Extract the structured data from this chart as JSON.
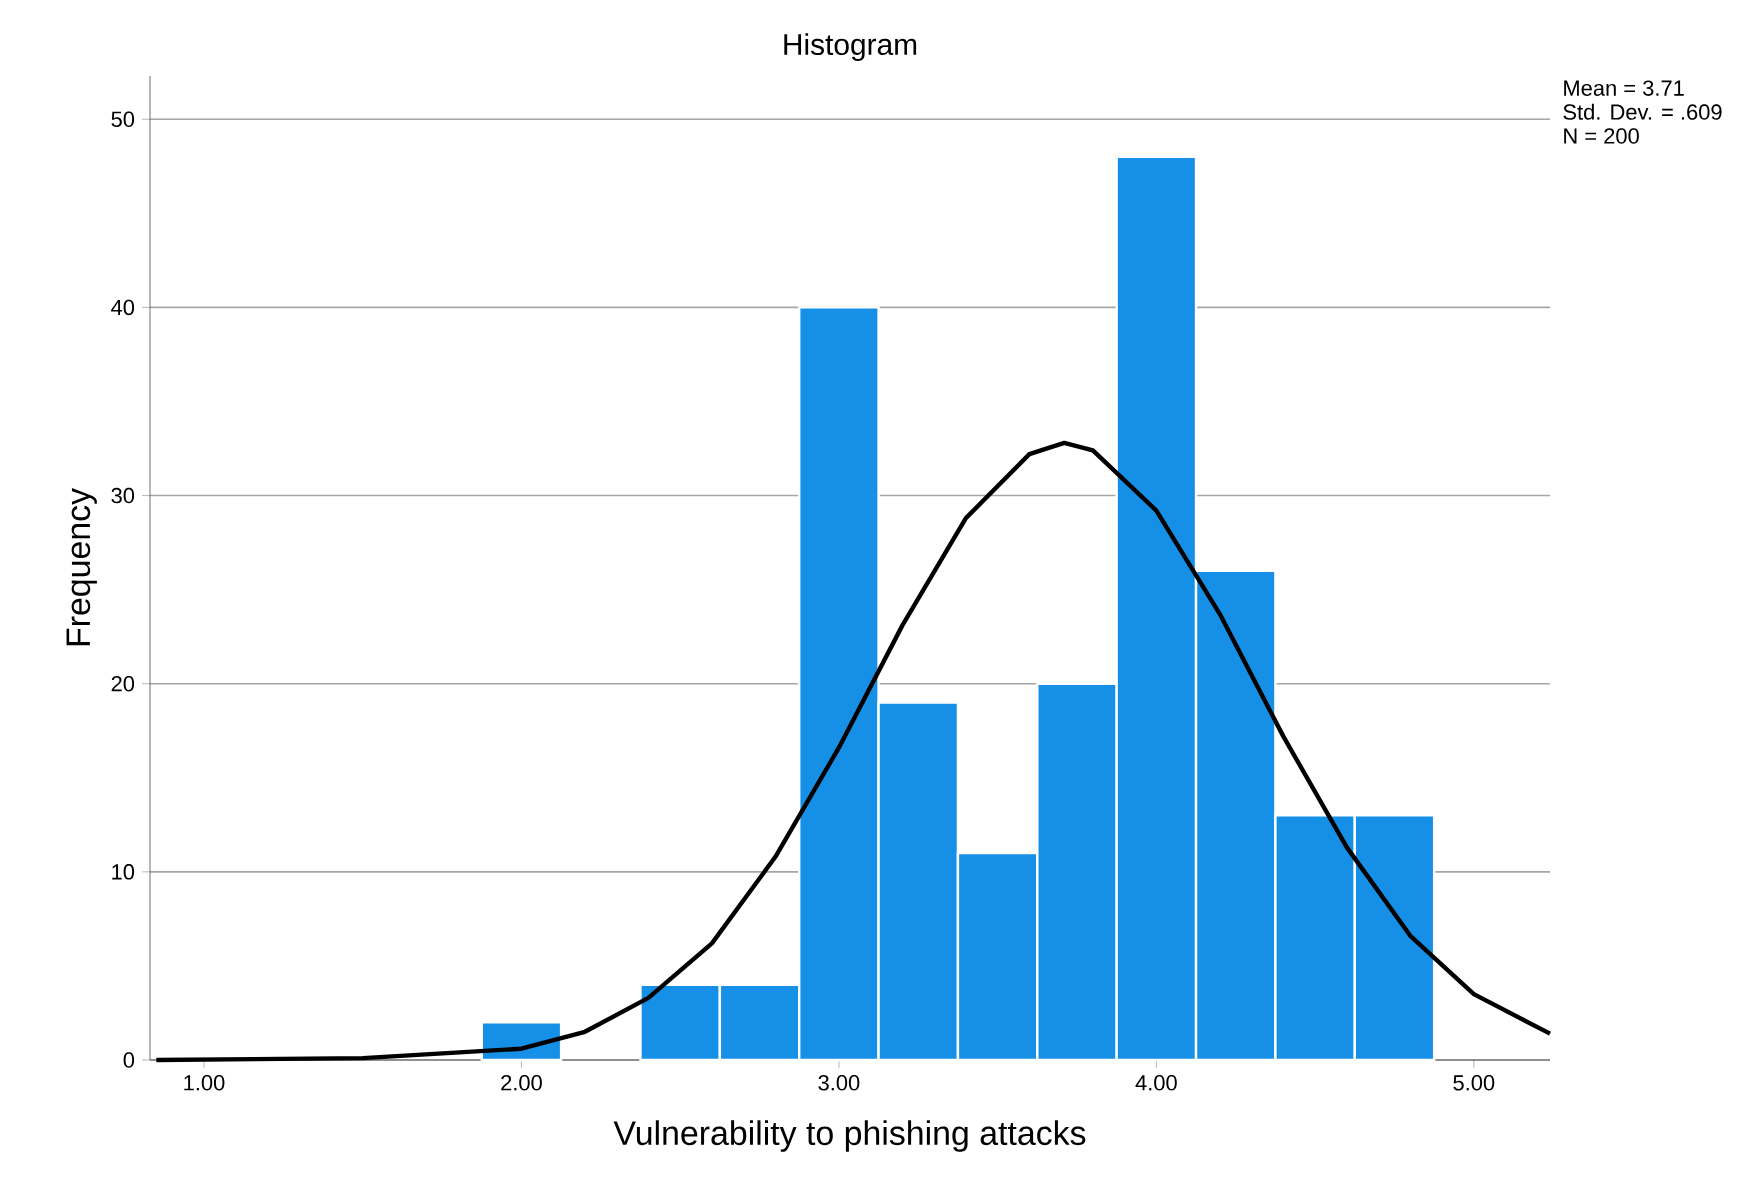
{
  "chart_data": {
    "type": "histogram",
    "title": "Histogram",
    "xlabel": "Vulnerability to phishing attacks",
    "ylabel": "Frequency",
    "bins": [
      1.875,
      2.125,
      2.375,
      2.625,
      2.875,
      3.125,
      3.375,
      3.625,
      3.875,
      4.125,
      4.375,
      4.625,
      4.875
    ],
    "values": [
      2,
      0,
      4,
      4,
      40,
      19,
      11,
      20,
      48,
      26,
      13,
      13
    ],
    "color": "#1690e6",
    "series": [
      {
        "type": "line",
        "color": "#000000",
        "x": [
          0.85,
          1.5,
          2.0,
          2.2,
          2.4,
          2.6,
          2.8,
          3.0,
          3.2,
          3.4,
          3.6,
          3.71,
          3.8,
          4.0,
          4.2,
          4.4,
          4.6,
          4.8,
          5.0,
          5.24
        ],
        "values": [
          0,
          0.1,
          0.6,
          1.5,
          3.3,
          6.2,
          10.8,
          16.6,
          23.1,
          28.8,
          32.2,
          32.8,
          32.4,
          29.2,
          23.7,
          17.2,
          11.3,
          6.6,
          3.5,
          1.4
        ]
      }
    ],
    "xlim": [
      0.83,
      5.24
    ],
    "ylim": [
      0,
      52.3
    ],
    "xticks": [
      {
        "value": 1,
        "label": "1.00"
      },
      {
        "value": 2,
        "label": "2.00"
      },
      {
        "value": 3,
        "label": "3.00"
      },
      {
        "value": 4,
        "label": "4.00"
      },
      {
        "value": 5,
        "label": "5.00"
      }
    ],
    "yticks": [
      0,
      10,
      20,
      30,
      40,
      50
    ],
    "grid": "y",
    "annotations": [
      "Mean = 3.71",
      "Std. Dev. = .609",
      "N = 200"
    ]
  }
}
